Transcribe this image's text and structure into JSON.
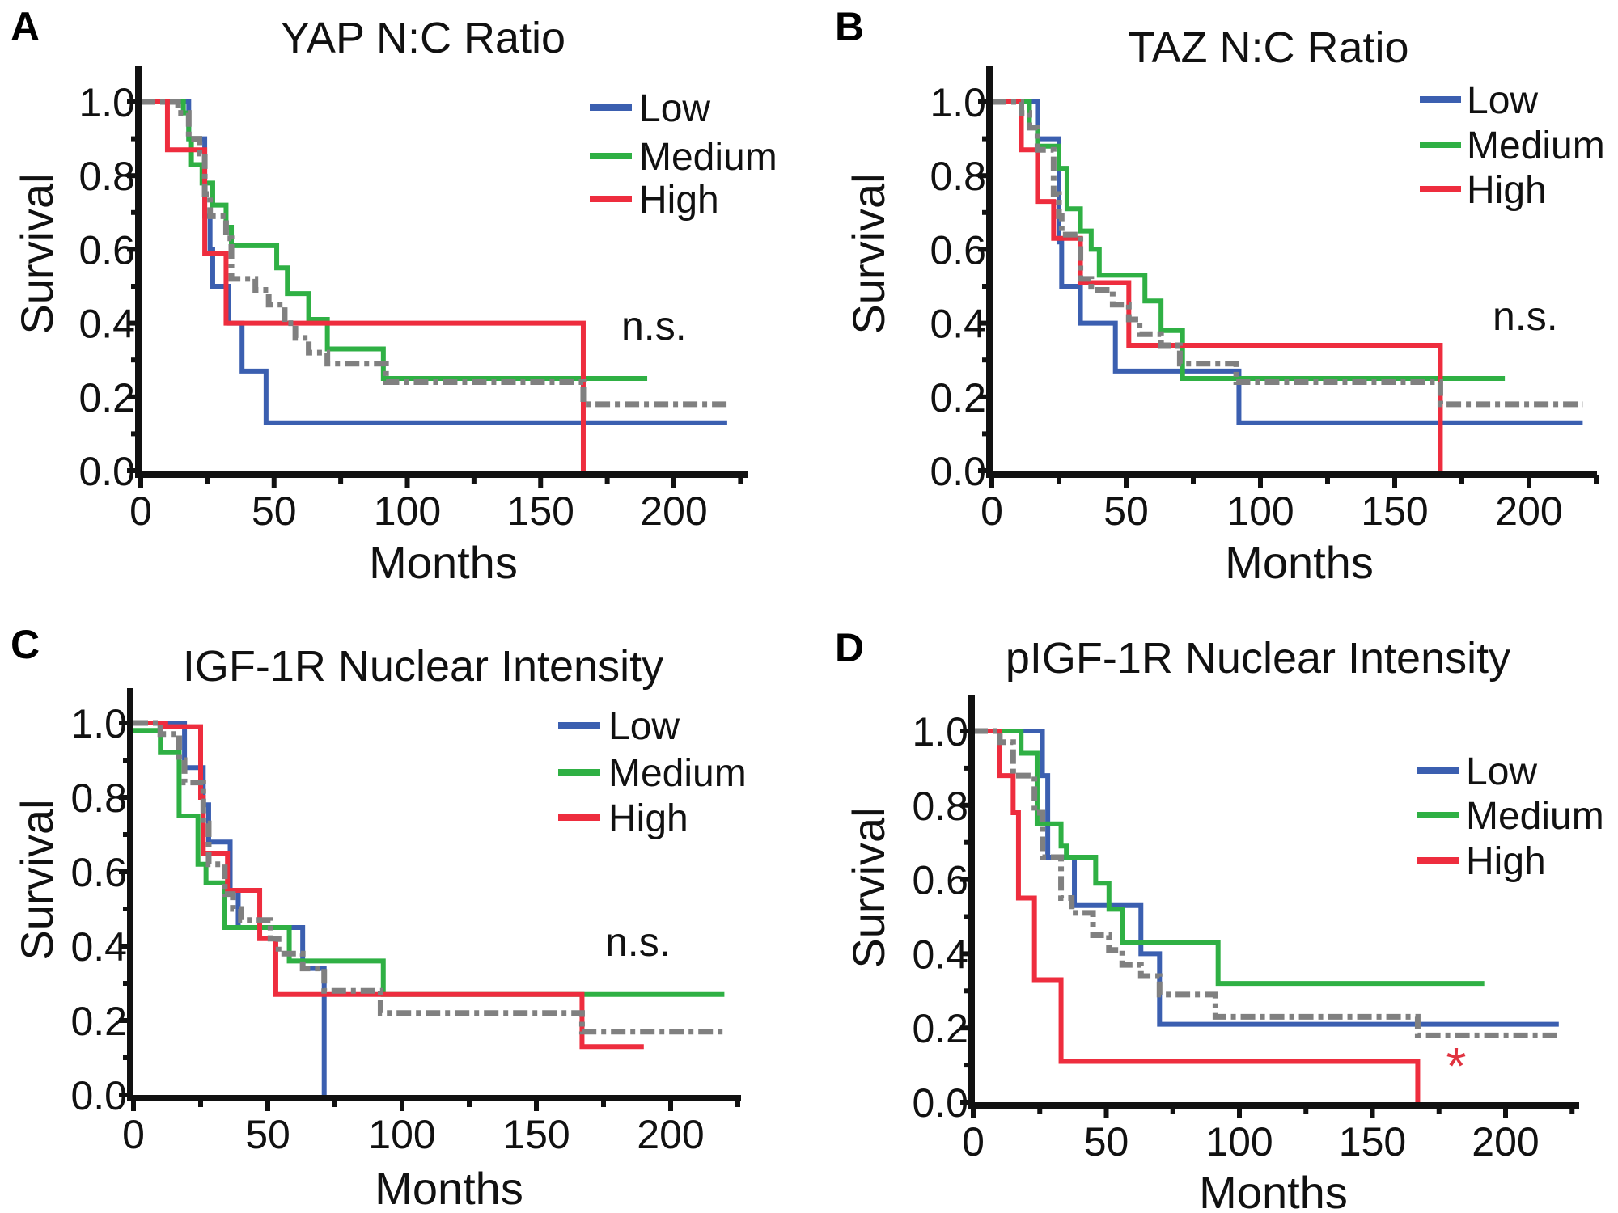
{
  "chart_data": [
    {
      "panel": "A",
      "type": "line",
      "title": "YAP N:C Ratio",
      "xlabel": "Months",
      "ylabel": "Survival",
      "xlim": [
        0,
        230
      ],
      "ylim": [
        0,
        1.05
      ],
      "xticks": [
        "0",
        "50",
        "100",
        "150",
        "200"
      ],
      "yticks": [
        "0.0",
        "0.2",
        "0.4",
        "0.6",
        "0.8",
        "1.0"
      ],
      "annotation": "n.s.",
      "annotation_color": "#111111",
      "legend_position": "top-right",
      "series": [
        {
          "name": "Low",
          "color": "#3b5fb0",
          "style": "solid",
          "steps": [
            [
              0,
              1
            ],
            [
              18,
              0.9
            ],
            [
              24,
              0.69
            ],
            [
              26,
              0.6
            ],
            [
              27,
              0.5
            ],
            [
              33,
              0.4
            ],
            [
              38,
              0.27
            ],
            [
              47,
              0.13
            ],
            [
              220,
              0.13
            ]
          ]
        },
        {
          "name": "Medium",
          "color": "#2fb044",
          "style": "solid",
          "steps": [
            [
              0,
              1
            ],
            [
              16,
              0.97
            ],
            [
              18,
              0.9
            ],
            [
              19,
              0.83
            ],
            [
              23,
              0.78
            ],
            [
              27,
              0.72
            ],
            [
              32,
              0.66
            ],
            [
              34,
              0.61
            ],
            [
              51,
              0.55
            ],
            [
              55,
              0.48
            ],
            [
              63,
              0.41
            ],
            [
              70,
              0.33
            ],
            [
              91,
              0.25
            ],
            [
              190,
              0.25
            ]
          ]
        },
        {
          "name": "High",
          "color": "#ee2d3e",
          "style": "solid",
          "steps": [
            [
              0,
              1
            ],
            [
              10,
              0.87
            ],
            [
              24,
              0.59
            ],
            [
              32,
              0.4
            ],
            [
              166,
              0
            ]
          ]
        },
        {
          "color": "#808080",
          "style": "dash-dot",
          "steps": [
            [
              0,
              1
            ],
            [
              14,
              0.97
            ],
            [
              18,
              0.9
            ],
            [
              22,
              0.86
            ],
            [
              24,
              0.75
            ],
            [
              26,
              0.69
            ],
            [
              32,
              0.63
            ],
            [
              34,
              0.52
            ],
            [
              43,
              0.49
            ],
            [
              48,
              0.45
            ],
            [
              54,
              0.4
            ],
            [
              58,
              0.36
            ],
            [
              63,
              0.32
            ],
            [
              70,
              0.29
            ],
            [
              92,
              0.24
            ],
            [
              166,
              0.18
            ],
            [
              220,
              0.18
            ]
          ]
        }
      ]
    },
    {
      "panel": "B",
      "type": "line",
      "title": "TAZ N:C Ratio",
      "xlabel": "Months",
      "ylabel": "Survival",
      "xlim": [
        0,
        230
      ],
      "ylim": [
        0,
        1.05
      ],
      "xticks": [
        "0",
        "50",
        "100",
        "150",
        "200"
      ],
      "yticks": [
        "0.0",
        "0.2",
        "0.4",
        "0.6",
        "0.8",
        "1.0"
      ],
      "annotation": "n.s.",
      "annotation_color": "#111111",
      "legend_position": "top-right",
      "series": [
        {
          "name": "Low",
          "color": "#3b5fb0",
          "style": "solid",
          "steps": [
            [
              0,
              1
            ],
            [
              17,
              0.9
            ],
            [
              25,
              0.62
            ],
            [
              26,
              0.5
            ],
            [
              33,
              0.4
            ],
            [
              46,
              0.27
            ],
            [
              92,
              0.13
            ],
            [
              220,
              0.13
            ]
          ]
        },
        {
          "name": "Medium",
          "color": "#2fb044",
          "style": "solid",
          "steps": [
            [
              0,
              1
            ],
            [
              14,
              0.93
            ],
            [
              17,
              0.88
            ],
            [
              25,
              0.82
            ],
            [
              28,
              0.71
            ],
            [
              33,
              0.65
            ],
            [
              37,
              0.6
            ],
            [
              40,
              0.53
            ],
            [
              57,
              0.46
            ],
            [
              63,
              0.38
            ],
            [
              71,
              0.25
            ],
            [
              191,
              0.25
            ]
          ]
        },
        {
          "name": "High",
          "color": "#ee2d3e",
          "style": "solid",
          "steps": [
            [
              0,
              1
            ],
            [
              11,
              0.87
            ],
            [
              17,
              0.73
            ],
            [
              23,
              0.63
            ],
            [
              33,
              0.51
            ],
            [
              51,
              0.34
            ],
            [
              167,
              0
            ]
          ]
        },
        {
          "color": "#808080",
          "style": "dash-dot",
          "steps": [
            [
              0,
              1
            ],
            [
              11,
              0.97
            ],
            [
              14,
              0.93
            ],
            [
              17,
              0.87
            ],
            [
              23,
              0.75
            ],
            [
              25,
              0.69
            ],
            [
              26,
              0.64
            ],
            [
              33,
              0.52
            ],
            [
              37,
              0.49
            ],
            [
              45,
              0.45
            ],
            [
              51,
              0.41
            ],
            [
              55,
              0.37
            ],
            [
              63,
              0.34
            ],
            [
              70,
              0.29
            ],
            [
              91,
              0.24
            ],
            [
              167,
              0.18
            ],
            [
              220,
              0.18
            ]
          ]
        }
      ]
    },
    {
      "panel": "C",
      "type": "line",
      "title": "IGF-1R Nuclear Intensity",
      "xlabel": "Months",
      "ylabel": "Survival",
      "xlim": [
        0,
        230
      ],
      "ylim": [
        0,
        1.05
      ],
      "xticks": [
        "0",
        "50",
        "100",
        "150",
        "200"
      ],
      "yticks": [
        "0.0",
        "0.2",
        "0.4",
        "0.6",
        "0.8",
        "1.0"
      ],
      "annotation": "n.s.",
      "annotation_color": "#111111",
      "legend_position": "top-right",
      "series": [
        {
          "name": "Low",
          "color": "#3b5fb0",
          "style": "solid",
          "steps": [
            [
              0,
              1
            ],
            [
              19,
              0.88
            ],
            [
              26,
              0.78
            ],
            [
              28,
              0.68
            ],
            [
              36,
              0.55
            ],
            [
              39,
              0.45
            ],
            [
              63,
              0.34
            ],
            [
              71,
              0
            ]
          ]
        },
        {
          "name": "Medium",
          "color": "#2fb044",
          "style": "solid",
          "steps": [
            [
              0,
              0.98
            ],
            [
              10,
              0.92
            ],
            [
              17,
              0.75
            ],
            [
              24,
              0.62
            ],
            [
              27,
              0.57
            ],
            [
              34,
              0.45
            ],
            [
              58,
              0.36
            ],
            [
              93,
              0.27
            ],
            [
              220,
              0.27
            ]
          ]
        },
        {
          "name": "High",
          "color": "#ee2d3e",
          "style": "solid",
          "steps": [
            [
              0,
              1
            ],
            [
              12,
              0.99
            ],
            [
              25,
              0.8
            ],
            [
              26,
              0.65
            ],
            [
              35,
              0.55
            ],
            [
              47,
              0.42
            ],
            [
              53,
              0.27
            ],
            [
              167,
              0.13
            ],
            [
              190,
              0.13
            ]
          ]
        },
        {
          "color": "#808080",
          "style": "dash-dot",
          "steps": [
            [
              0,
              1
            ],
            [
              10,
              0.97
            ],
            [
              17,
              0.9
            ],
            [
              19,
              0.84
            ],
            [
              26,
              0.73
            ],
            [
              28,
              0.62
            ],
            [
              34,
              0.54
            ],
            [
              37,
              0.5
            ],
            [
              40,
              0.47
            ],
            [
              51,
              0.42
            ],
            [
              54,
              0.38
            ],
            [
              63,
              0.34
            ],
            [
              71,
              0.28
            ],
            [
              92,
              0.22
            ],
            [
              167,
              0.17
            ],
            [
              220,
              0.17
            ]
          ]
        }
      ]
    },
    {
      "panel": "D",
      "type": "line",
      "title": "pIGF-1R Nuclear Intensity",
      "xlabel": "Months",
      "ylabel": "Survival",
      "xlim": [
        0,
        230
      ],
      "ylim": [
        0,
        1.05
      ],
      "xticks": [
        "0",
        "50",
        "100",
        "150",
        "200"
      ],
      "yticks": [
        "0.0",
        "0.2",
        "0.4",
        "0.6",
        "0.8",
        "1.0"
      ],
      "annotation": "*",
      "annotation_color": "#e0323f",
      "legend_position": "top-right",
      "series": [
        {
          "name": "Low",
          "color": "#3b5fb0",
          "style": "solid",
          "steps": [
            [
              0,
              1
            ],
            [
              26,
              0.88
            ],
            [
              28,
              0.66
            ],
            [
              38,
              0.53
            ],
            [
              63,
              0.4
            ],
            [
              70,
              0.21
            ],
            [
              220,
              0.21
            ]
          ]
        },
        {
          "name": "Medium",
          "color": "#2fb044",
          "style": "solid",
          "steps": [
            [
              0,
              1
            ],
            [
              18,
              0.94
            ],
            [
              24,
              0.75
            ],
            [
              33,
              0.69
            ],
            [
              35,
              0.66
            ],
            [
              46,
              0.59
            ],
            [
              51,
              0.52
            ],
            [
              56,
              0.43
            ],
            [
              92,
              0.32
            ],
            [
              192,
              0.32
            ]
          ]
        },
        {
          "name": "High",
          "color": "#ee2d3e",
          "style": "solid",
          "steps": [
            [
              0,
              1
            ],
            [
              10,
              0.88
            ],
            [
              15,
              0.78
            ],
            [
              17,
              0.55
            ],
            [
              23,
              0.33
            ],
            [
              33,
              0.11
            ],
            [
              167,
              0
            ]
          ]
        },
        {
          "color": "#808080",
          "style": "dash-dot",
          "steps": [
            [
              0,
              1
            ],
            [
              10,
              0.97
            ],
            [
              15,
              0.88
            ],
            [
              23,
              0.78
            ],
            [
              26,
              0.66
            ],
            [
              33,
              0.55
            ],
            [
              37,
              0.51
            ],
            [
              45,
              0.45
            ],
            [
              51,
              0.41
            ],
            [
              56,
              0.37
            ],
            [
              63,
              0.34
            ],
            [
              70,
              0.29
            ],
            [
              91,
              0.23
            ],
            [
              167,
              0.18
            ],
            [
              220,
              0.18
            ]
          ]
        }
      ]
    }
  ]
}
